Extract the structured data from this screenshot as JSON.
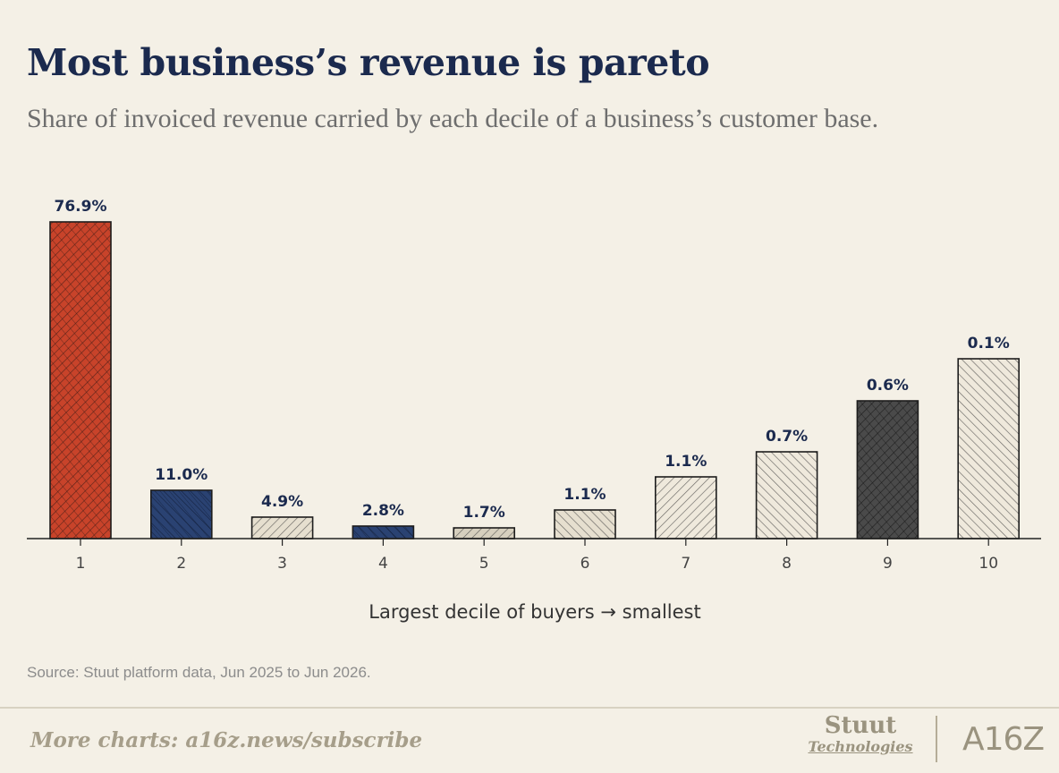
{
  "header": {
    "title": "Most business’s revenue is pareto",
    "subtitle": "Share of invoiced revenue carried by each decile of a business’s customer base."
  },
  "chart_data": {
    "type": "bar",
    "categories": [
      "1",
      "2",
      "3",
      "4",
      "5",
      "6",
      "7",
      "8",
      "9",
      "10"
    ],
    "values": [
      76.9,
      11.0,
      4.9,
      2.8,
      1.7,
      1.1,
      1.1,
      0.7,
      0.6,
      0.1
    ],
    "value_labels": [
      "76.9%",
      "11.0%",
      "4.9%",
      "2.8%",
      "1.7%",
      "1.1%",
      "1.1%",
      "0.7%",
      "0.6%",
      "0.1%"
    ],
    "title": "Most business’s revenue is pareto",
    "xlabel": "Largest decile of buyers → smallest",
    "ylabel": "",
    "grid": false,
    "bar_styles": [
      {
        "fill": "#c8432a",
        "hatch": "#3a1a14"
      },
      {
        "fill": "#2a4272",
        "hatch": "#0f1a33"
      },
      {
        "fill": "#e6dfcf",
        "hatch": "#3a3a3a"
      },
      {
        "fill": "#2a4272",
        "hatch": "#0f1a33"
      },
      {
        "fill": "#d6cfbe",
        "hatch": "#3a3a3a"
      },
      {
        "fill": "#e6dfcf",
        "hatch": "#3a3a3a"
      },
      {
        "fill": "#efe9dc",
        "hatch": "#3a3a3a"
      },
      {
        "fill": "#efe9dc",
        "hatch": "#3a3a3a"
      },
      {
        "fill": "#4a4a4a",
        "hatch": "#111111"
      },
      {
        "fill": "#efe9dc",
        "hatch": "#3a3a3a"
      }
    ]
  },
  "footer": {
    "source": "Source: Stuut platform data, Jun 2025 to Jun 2026.",
    "link": "More charts: a16z.news/subscribe",
    "brand_stuut_top": "Stuut",
    "brand_stuut_bottom": "Technologies",
    "brand_a16z": "A16Z"
  }
}
